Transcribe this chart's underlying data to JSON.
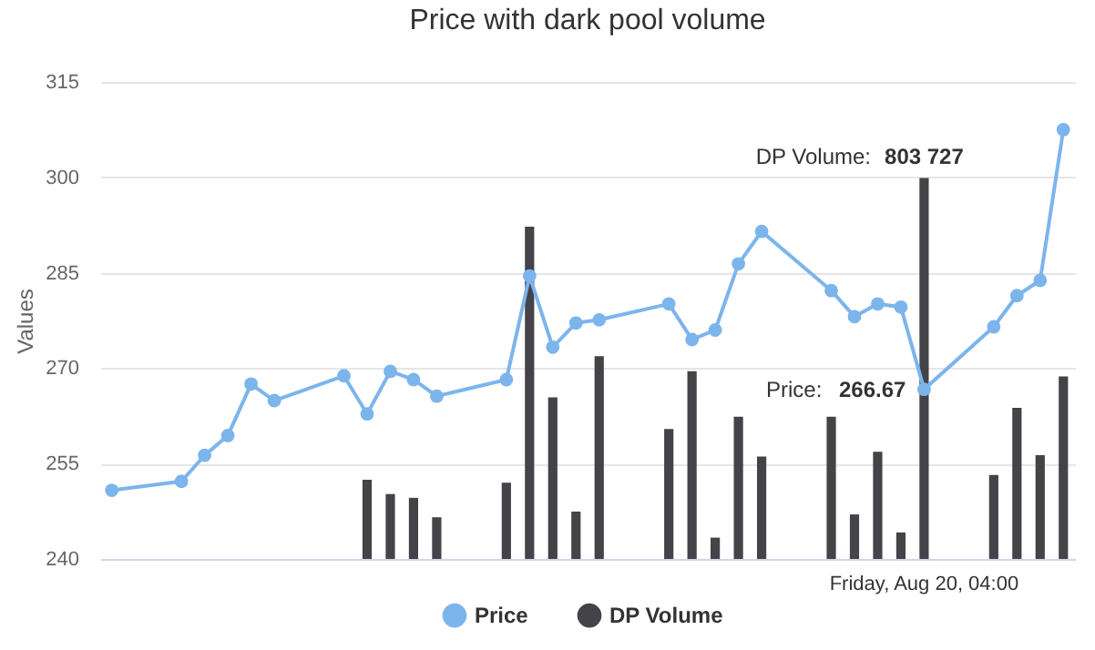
{
  "chart_data": {
    "type": "line",
    "title": "Price with dark pool volume",
    "ylabel": "Values",
    "categories": [
      null,
      null,
      null,
      null,
      null,
      null,
      null,
      null,
      null,
      null,
      null,
      null,
      null,
      null,
      null,
      null,
      null,
      null,
      null,
      null,
      null,
      null,
      null,
      null,
      null,
      null,
      null,
      null,
      null,
      null,
      null,
      null,
      null,
      null,
      null,
      null,
      null,
      null,
      null,
      null,
      null,
      null
    ],
    "series": [
      {
        "name": "Price",
        "type": "line",
        "color": "#7cb5ec",
        "values": [
          250.8,
          null,
          null,
          252.2,
          256.3,
          259.4,
          267.5,
          264.9,
          null,
          null,
          268.8,
          262.8,
          269.5,
          268.2,
          265.6,
          null,
          null,
          268.2,
          284.5,
          273.3,
          277.1,
          277.6,
          null,
          null,
          280.1,
          274.5,
          276,
          286.4,
          291.5,
          null,
          null,
          282.2,
          278.1,
          280.1,
          279.6,
          266.67,
          null,
          null,
          276.5,
          281.4,
          283.8,
          307.5
        ],
        "value_labels": [
          null,
          null,
          null,
          null,
          null,
          null,
          null,
          null,
          null,
          null,
          null,
          null,
          null,
          null,
          null,
          null,
          null,
          null,
          null,
          null,
          null,
          null,
          null,
          null,
          null,
          null,
          null,
          null,
          null,
          null,
          null,
          null,
          null,
          null,
          null,
          "266.67",
          null,
          null,
          null,
          null,
          null,
          null
        ]
      },
      {
        "name": "DP Volume",
        "type": "bar",
        "axis": "y2",
        "color": "#434348",
        "values": [
          null,
          null,
          null,
          null,
          null,
          null,
          null,
          null,
          null,
          null,
          null,
          167000,
          137000,
          129000,
          88000,
          null,
          null,
          161000,
          701000,
          341000,
          100000,
          428000,
          null,
          null,
          274000,
          396000,
          45000,
          300000,
          216000,
          null,
          null,
          300000,
          94000,
          226000,
          56000,
          803727,
          null,
          null,
          177000,
          319000,
          219000,
          385000
        ],
        "value_labels": [
          null,
          null,
          null,
          null,
          null,
          null,
          null,
          null,
          null,
          null,
          null,
          null,
          null,
          null,
          null,
          null,
          null,
          null,
          null,
          null,
          null,
          null,
          null,
          null,
          null,
          null,
          null,
          null,
          null,
          null,
          null,
          null,
          null,
          null,
          null,
          "803 727",
          null,
          null,
          null,
          null,
          null,
          null
        ]
      }
    ],
    "ylim": [
      240,
      315
    ],
    "yticks": [
      240,
      255,
      270,
      285,
      300,
      315
    ],
    "y2lim": [
      0,
      1006600
    ],
    "tick_labels": "y",
    "grid": "y",
    "legend": "bottom",
    "marker": "circle",
    "annotations": [
      "Price:",
      "DP Volume:",
      "Friday, Aug 20, 04:00"
    ]
  }
}
